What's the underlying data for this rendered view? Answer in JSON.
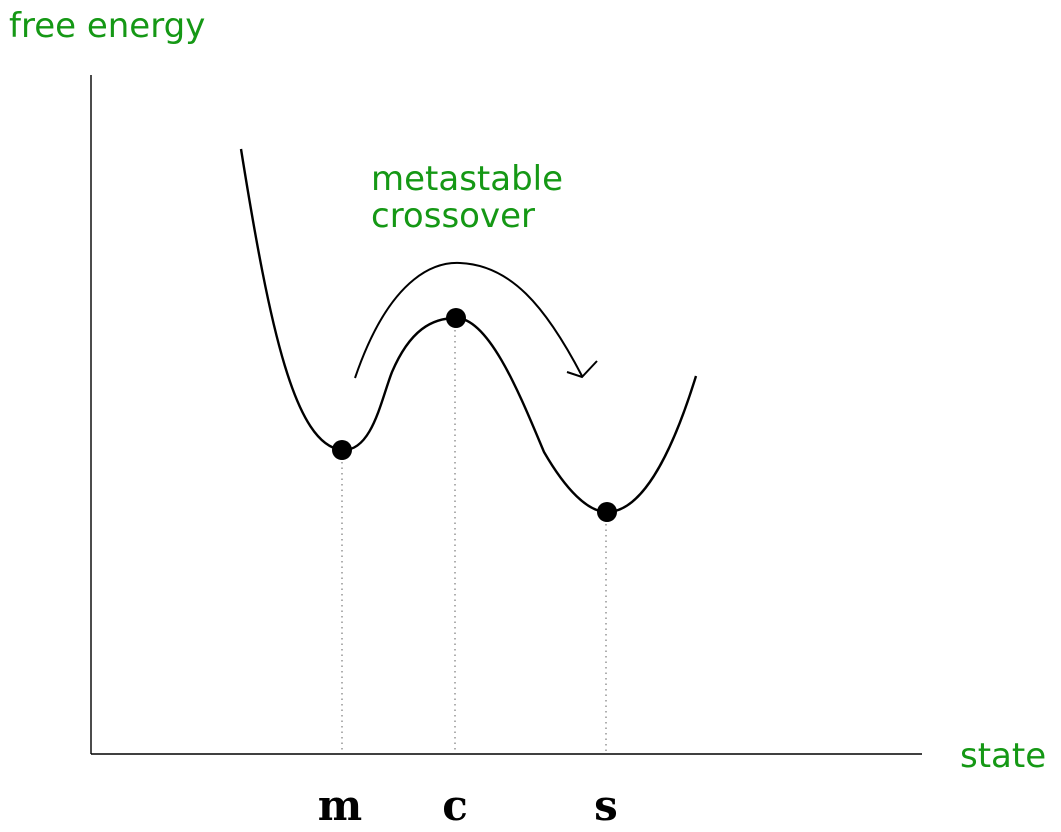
{
  "labels": {
    "y_axis": "free energy",
    "x_axis": "state",
    "annotation_line1": "metastable",
    "annotation_line2": "crossover"
  },
  "states": {
    "metastable": "m",
    "crossover": "c",
    "stable": "s"
  },
  "colors": {
    "label": "#159815",
    "curve": "#000000",
    "axis": "#000000",
    "guide": "#7a7a7a"
  }
}
